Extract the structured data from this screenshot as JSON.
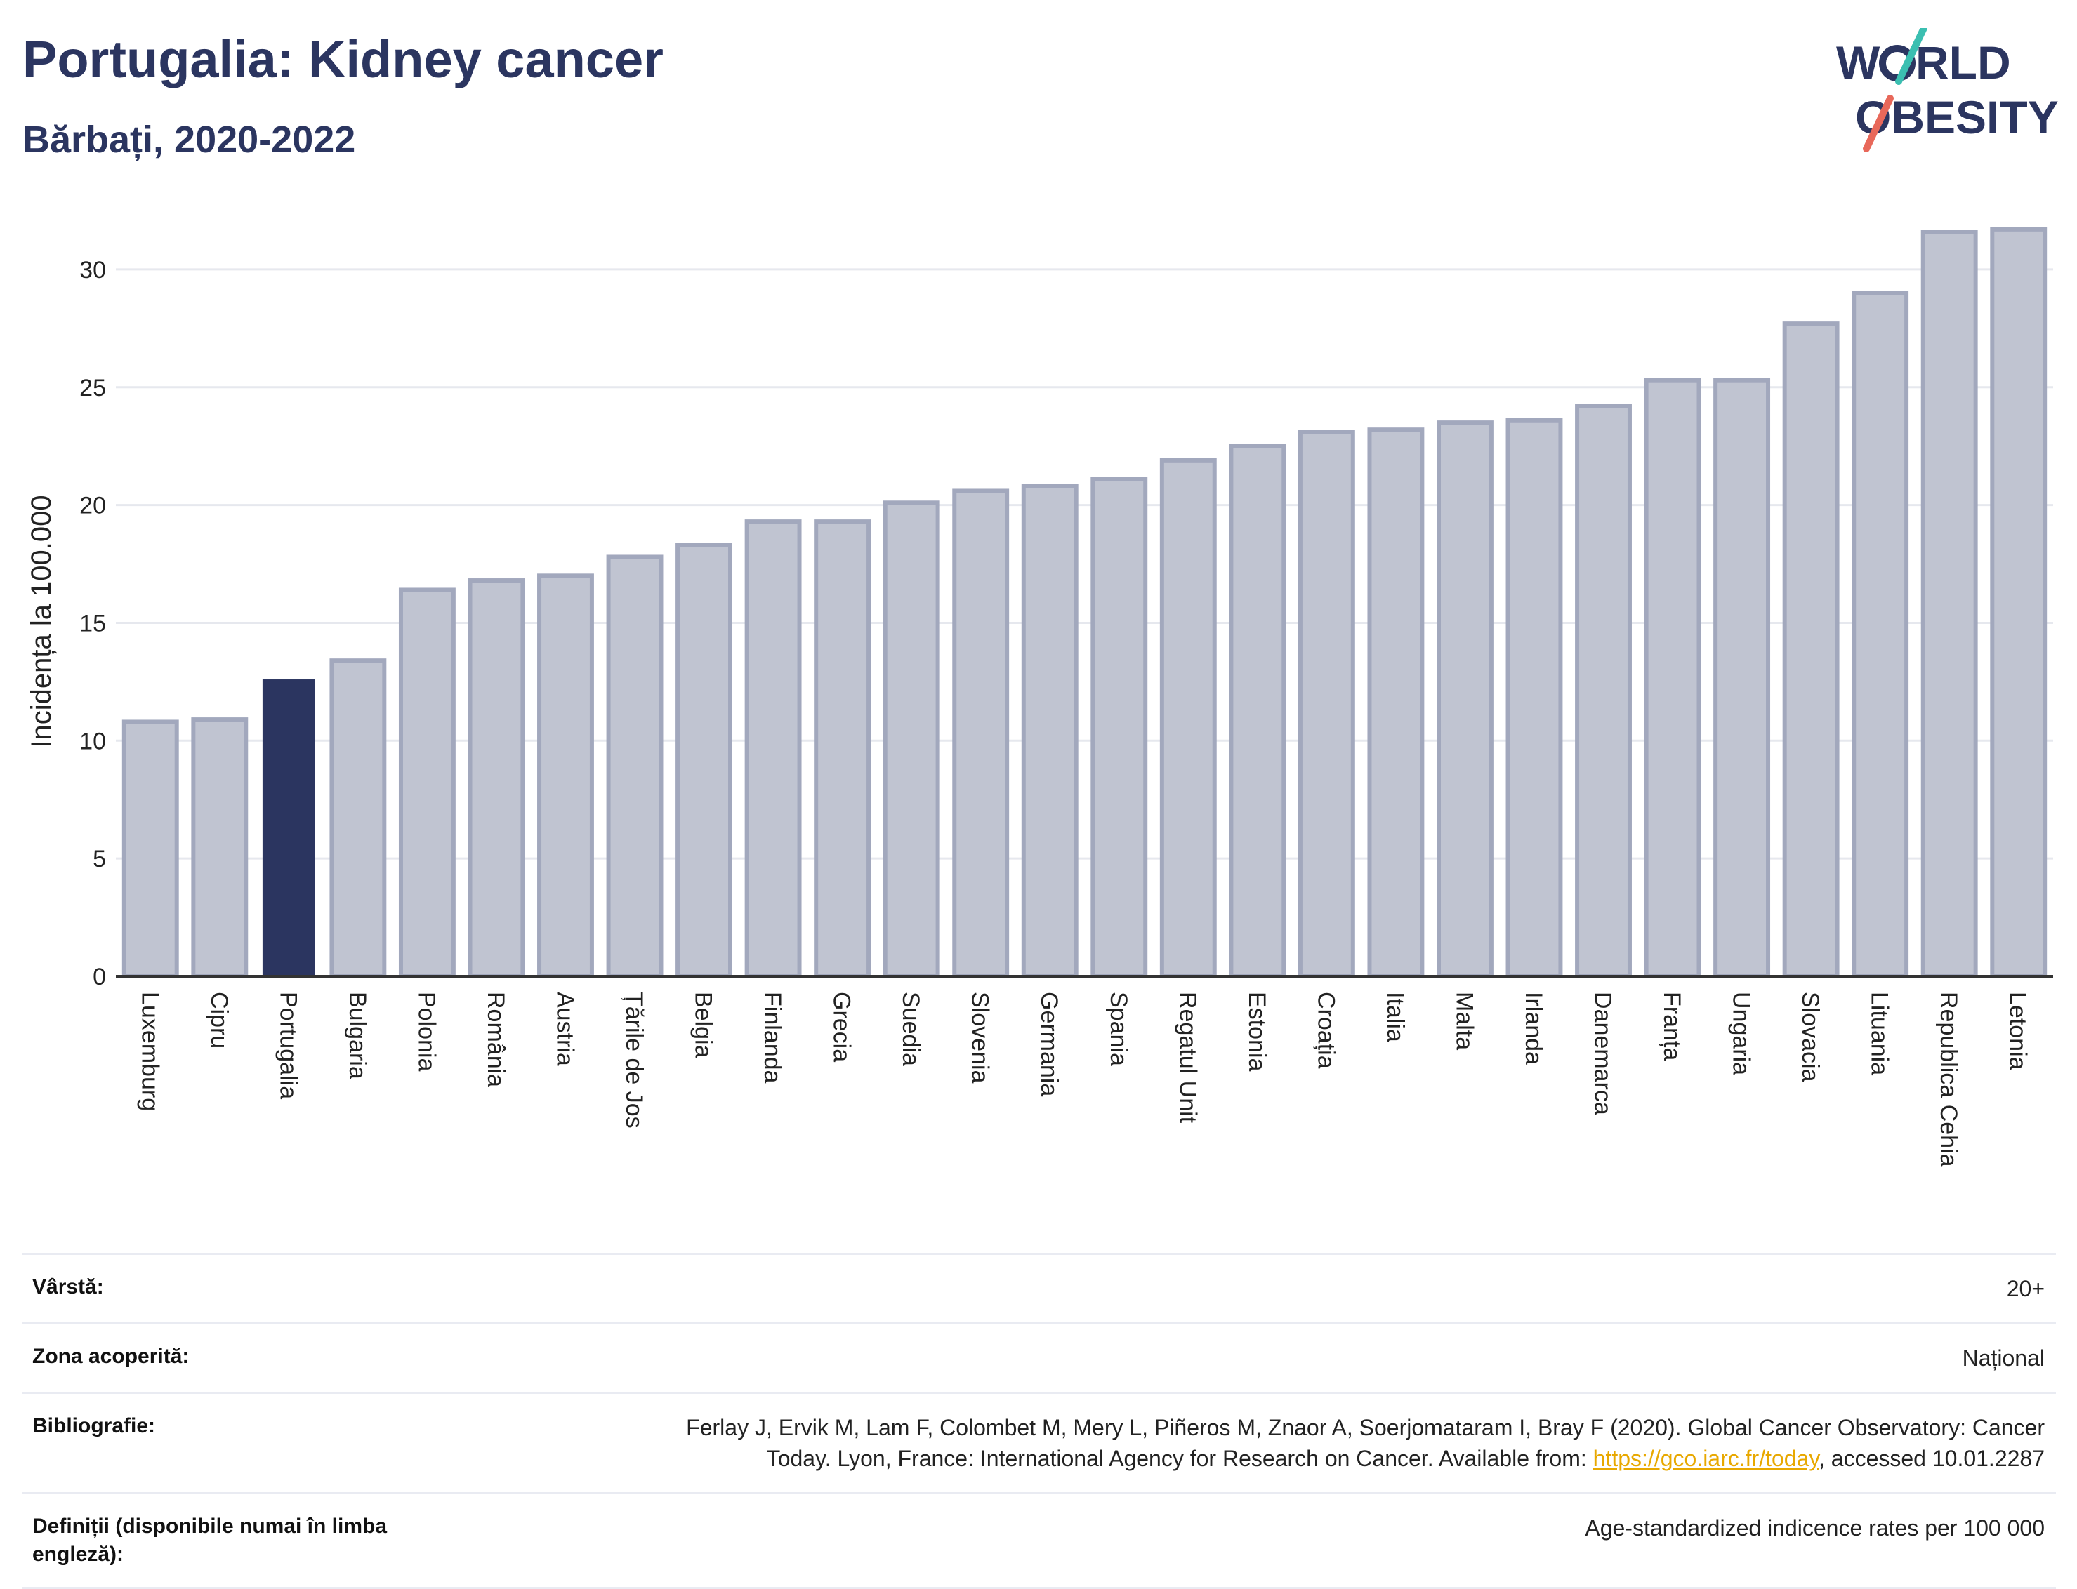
{
  "header": {
    "title": "Portugalia: Kidney cancer",
    "subtitle": "Bărbați, 2020-2022"
  },
  "logo": {
    "line1_a": "W",
    "line1_b": "RLD",
    "line2": "OBESITY",
    "slash_colors": [
      "#3bbfb1",
      "#e8685a"
    ],
    "text_color": "#2b3560"
  },
  "chart_data": {
    "type": "bar",
    "ylabel": "Incidența la 100.000",
    "xlabel": "",
    "ylim": [
      0,
      32.5
    ],
    "yticks": [
      0,
      5,
      10,
      15,
      20,
      25,
      30
    ],
    "grid": true,
    "highlight": "Portugalia",
    "colors": {
      "highlight": "#2b3560",
      "bar_fill": "#c0c4d1",
      "bar_edge": "#a2a8bd",
      "grid": "#e6e8ee",
      "axis": "#333333"
    },
    "categories": [
      "Luxemburg",
      "Cipru",
      "Portugalia",
      "Bulgaria",
      "Polonia",
      "România",
      "Austria",
      "Țările de Jos",
      "Belgia",
      "Finlanda",
      "Grecia",
      "Suedia",
      "Slovenia",
      "Germania",
      "Spania",
      "Regatul Unit",
      "Estonia",
      "Croația",
      "Italia",
      "Malta",
      "Irlanda",
      "Danemarca",
      "Franța",
      "Ungaria",
      "Slovacia",
      "Lituania",
      "Republica Cehia",
      "Letonia"
    ],
    "values": [
      10.8,
      10.9,
      12.6,
      13.4,
      16.4,
      16.8,
      17.0,
      17.8,
      18.3,
      19.3,
      19.3,
      20.1,
      20.6,
      20.8,
      21.1,
      21.9,
      22.5,
      23.1,
      23.2,
      23.5,
      23.6,
      24.2,
      25.3,
      25.3,
      27.7,
      29.0,
      31.6,
      31.7
    ]
  },
  "meta": {
    "age_label": "Vârstă:",
    "age_value": "20+",
    "area_label": "Zona acoperită:",
    "area_value": "Național",
    "biblio_label": "Bibliografie:",
    "biblio_line1": "Ferlay J, Ervik M, Lam F, Colombet M, Mery L, Piñeros M, Znaor A, Soerjomataram I, Bray F (2020). Global Cancer Observatory: Cancer",
    "biblio_line2_pre": "Today. Lyon, France: International Agency for Research on Cancer. Available from: ",
    "biblio_link": "https://gco.iarc.fr/today",
    "biblio_line2_post": ", accessed 10.01.2287",
    "def_label": "Definiții (disponibile numai în limba engleză):",
    "def_value": "Age-standardized indicence rates per 100 000"
  }
}
